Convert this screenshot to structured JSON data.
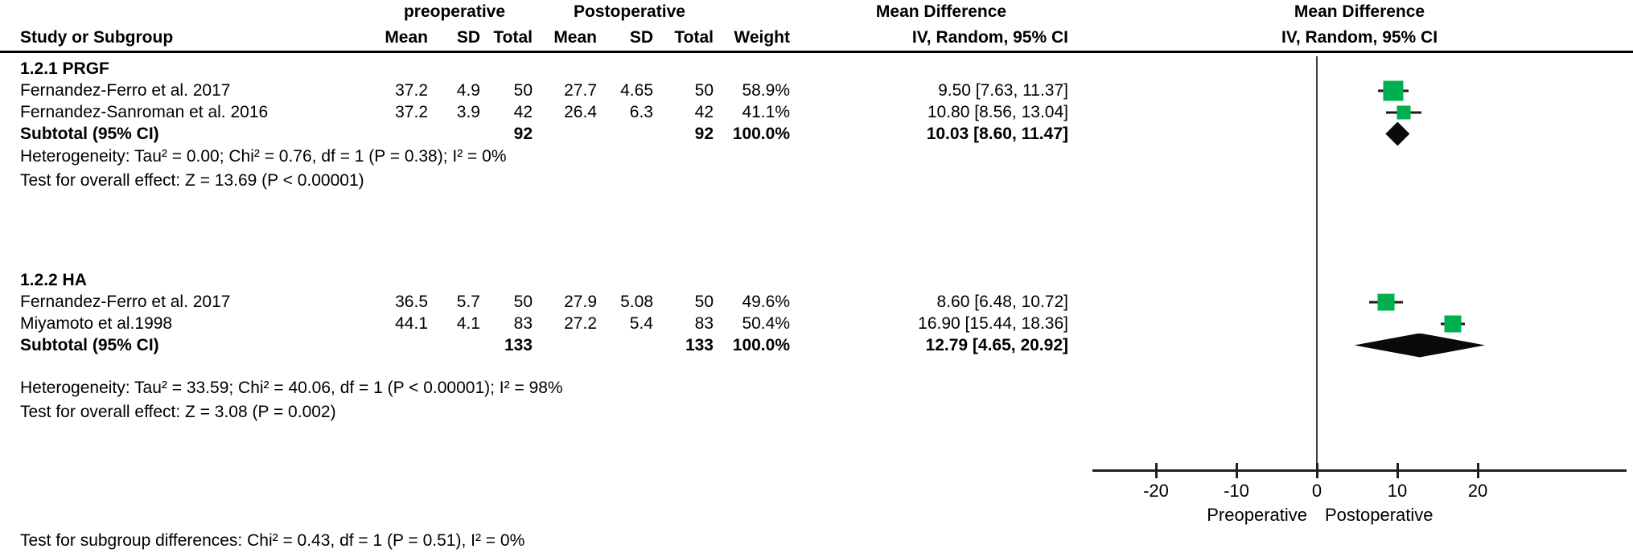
{
  "header": {
    "group1_label": "preoperative",
    "group2_label": "Postoperative",
    "effect_col_label": "Mean Difference",
    "plot_col_label": "Mean Difference",
    "study_col": "Study or Subgroup",
    "mean_col": "Mean",
    "sd_col": "SD",
    "total_col": "Total",
    "weight_col": "Weight",
    "ci_col": "IV, Random, 95% CI",
    "plot_sub_col": "IV, Random, 95% CI"
  },
  "rows": [
    {
      "type": "subgroup",
      "label": "1.2.1 PRGF"
    },
    {
      "type": "study",
      "label": "Fernandez-Ferro et al. 2017",
      "mean1": "37.2",
      "sd1": "4.9",
      "total1": "50",
      "mean2": "27.7",
      "sd2": "4.65",
      "total2": "50",
      "weight": "58.9%",
      "ci": "9.50 [7.63, 11.37]",
      "est": 9.5,
      "lo": 7.63,
      "hi": 11.37,
      "weight_num": 58.9
    },
    {
      "type": "study",
      "label": "Fernandez-Sanroman et al. 2016",
      "mean1": "37.2",
      "sd1": "3.9",
      "total1": "42",
      "mean2": "26.4",
      "sd2": "6.3",
      "total2": "42",
      "weight": "41.1%",
      "ci": "10.80 [8.56, 13.04]",
      "est": 10.8,
      "lo": 8.56,
      "hi": 13.04,
      "weight_num": 41.1
    },
    {
      "type": "subtotal",
      "label": "Subtotal (95% CI)",
      "total1": "92",
      "total2": "92",
      "weight": "100.0%",
      "ci": "10.03 [8.60, 11.47]",
      "est": 10.03,
      "lo": 8.6,
      "hi": 11.47
    },
    {
      "type": "text",
      "text": "Heterogeneity: Tau² = 0.00; Chi² = 0.76, df = 1 (P = 0.38); I² = 0%"
    },
    {
      "type": "text",
      "text": "Test for overall effect: Z = 13.69 (P < 0.00001)"
    },
    {
      "type": "spacer",
      "size": "lg"
    },
    {
      "type": "subgroup",
      "label": "1.2.2 HA"
    },
    {
      "type": "study",
      "label": "Fernandez-Ferro et al. 2017",
      "mean1": "36.5",
      "sd1": "5.7",
      "total1": "50",
      "mean2": "27.9",
      "sd2": "5.08",
      "total2": "50",
      "weight": "49.6%",
      "ci": "8.60 [6.48, 10.72]",
      "est": 8.6,
      "lo": 6.48,
      "hi": 10.72,
      "weight_num": 49.6
    },
    {
      "type": "study",
      "label": "Miyamoto et al.1998",
      "mean1": "44.1",
      "sd1": "4.1",
      "total1": "83",
      "mean2": "27.2",
      "sd2": "5.4",
      "total2": "83",
      "weight": "50.4%",
      "ci": "16.90 [15.44, 18.36]",
      "est": 16.9,
      "lo": 15.44,
      "hi": 18.36,
      "weight_num": 50.4
    },
    {
      "type": "subtotal",
      "label": "Subtotal (95% CI)",
      "total1": "133",
      "total2": "133",
      "weight": "100.0%",
      "ci": "12.79 [4.65, 20.92]",
      "est": 12.79,
      "lo": 4.65,
      "hi": 20.92
    },
    {
      "type": "spacer",
      "size": "sm"
    },
    {
      "type": "text",
      "text": "Heterogeneity: Tau² = 33.59; Chi² = 40.06, df = 1 (P < 0.00001); I² = 98%"
    },
    {
      "type": "text",
      "text": "Test for overall effect: Z = 3.08 (P = 0.002)"
    }
  ],
  "footer": {
    "subgroup_diff": "Test for subgroup differences: Chi² = 0.43, df = 1 (P = 0.51), I² = 0%"
  },
  "axis": {
    "ticks": [
      "-20",
      "-10",
      "0",
      "10",
      "20"
    ],
    "tick_values": [
      -20,
      -10,
      0,
      10,
      20
    ],
    "favours_left": "Preoperative",
    "favours_right": "Postoperative"
  },
  "colors": {
    "marker_green": "#00B050",
    "diamond_black": "#0a0a0a",
    "line_black": "#1f1f1f"
  },
  "chart_data": {
    "type": "forest",
    "title": "Mean Difference  IV, Random, 95% CI",
    "x_axis": {
      "ticks": [
        -20,
        -10,
        0,
        10,
        20
      ],
      "xlim": [
        -25,
        25
      ],
      "label_left": "Preoperative",
      "label_right": "Postoperative"
    },
    "groups": [
      {
        "name": "1.2.1 PRGF",
        "studies": [
          {
            "label": "Fernandez-Ferro et al. 2017",
            "pre_mean": 37.2,
            "pre_sd": 4.9,
            "pre_total": 50,
            "post_mean": 27.7,
            "post_sd": 4.65,
            "post_total": 50,
            "weight_pct": 58.9,
            "md": 9.5,
            "ci": [
              7.63,
              11.37
            ]
          },
          {
            "label": "Fernandez-Sanroman et al. 2016",
            "pre_mean": 37.2,
            "pre_sd": 3.9,
            "pre_total": 42,
            "post_mean": 26.4,
            "post_sd": 6.3,
            "post_total": 42,
            "weight_pct": 41.1,
            "md": 10.8,
            "ci": [
              8.56,
              13.04
            ]
          }
        ],
        "subtotal": {
          "total1": 92,
          "total2": 92,
          "weight_pct": 100.0,
          "md": 10.03,
          "ci": [
            8.6,
            11.47
          ]
        },
        "heterogeneity": "Tau² = 0.00; Chi² = 0.76, df = 1 (P = 0.38); I² = 0%",
        "overall_effect": "Z = 13.69 (P < 0.00001)"
      },
      {
        "name": "1.2.2 HA",
        "studies": [
          {
            "label": "Fernandez-Ferro et al. 2017",
            "pre_mean": 36.5,
            "pre_sd": 5.7,
            "pre_total": 50,
            "post_mean": 27.9,
            "post_sd": 5.08,
            "post_total": 50,
            "weight_pct": 49.6,
            "md": 8.6,
            "ci": [
              6.48,
              10.72
            ]
          },
          {
            "label": "Miyamoto et al.1998",
            "pre_mean": 44.1,
            "pre_sd": 4.1,
            "pre_total": 83,
            "post_mean": 27.2,
            "post_sd": 5.4,
            "post_total": 83,
            "weight_pct": 50.4,
            "md": 16.9,
            "ci": [
              15.44,
              18.36
            ]
          }
        ],
        "subtotal": {
          "total1": 133,
          "total2": 133,
          "weight_pct": 100.0,
          "md": 12.79,
          "ci": [
            4.65,
            20.92
          ]
        },
        "heterogeneity": "Tau² = 33.59; Chi² = 40.06, df = 1 (P < 0.00001); I² = 98%",
        "overall_effect": "Z = 3.08 (P = 0.002)"
      }
    ],
    "subgroup_difference": "Chi² = 0.43, df = 1 (P = 0.51), I² = 0%"
  }
}
